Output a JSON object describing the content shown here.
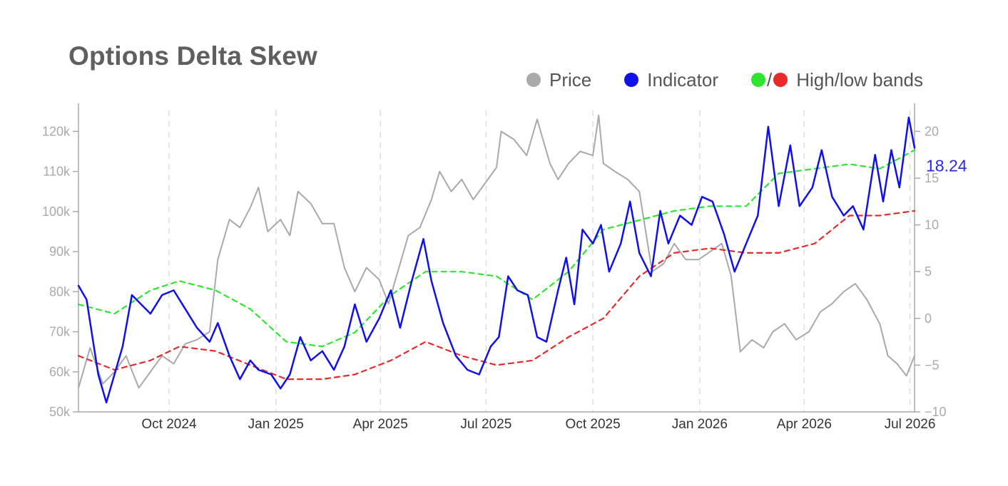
{
  "title": "Options Delta Skew",
  "legend": {
    "price": "Price",
    "indicator": "Indicator",
    "bands_sep": "/",
    "bands": "High/low bands"
  },
  "colors": {
    "price": "#a9a9a9",
    "indicator": "#1010e8",
    "high_band": "#2ee62e",
    "low_band": "#e82a2a",
    "last_value": "#2a2ae0",
    "axis": "#aaaaaa",
    "grid": "#dddddd"
  },
  "chart_data": {
    "type": "line",
    "title": "Options Delta Skew",
    "grid": "vertical dashed",
    "legend_position": "top-right",
    "x_axis": {
      "ticks": [
        "Oct 2024",
        "Jan 2025",
        "Apr 2025",
        "Jul 2025",
        "Oct 2025",
        "Jan 2026",
        "Apr 2026",
        "Jul 2026"
      ],
      "range": [
        "2024-07-15",
        "2026-07-05"
      ]
    },
    "y_left": {
      "range": [
        50000,
        127000
      ],
      "ticks": [
        50000,
        60000,
        70000,
        80000,
        90000,
        100000,
        110000,
        120000
      ],
      "tick_labels": [
        "50k",
        "60k",
        "70k",
        "80k",
        "90k",
        "100k",
        "110k",
        "120k"
      ]
    },
    "y_right": {
      "range": [
        -10,
        23
      ],
      "ticks": [
        -10,
        -5,
        0,
        5,
        10,
        15,
        20
      ],
      "tick_labels": [
        "−10",
        "−5",
        "0",
        "5",
        "10",
        "15",
        "20"
      ]
    },
    "last_value_label": "18.24",
    "series": [
      {
        "name": "Price",
        "axis": "left",
        "points": [
          [
            "2024-07-15",
            56000
          ],
          [
            "2024-07-25",
            66000
          ],
          [
            "2024-08-05",
            57000
          ],
          [
            "2024-08-15",
            60000
          ],
          [
            "2024-08-25",
            64000
          ],
          [
            "2024-09-05",
            56000
          ],
          [
            "2024-09-15",
            60000
          ],
          [
            "2024-09-25",
            64000
          ],
          [
            "2024-10-05",
            62000
          ],
          [
            "2024-10-15",
            67000
          ],
          [
            "2024-10-25",
            68000
          ],
          [
            "2024-11-05",
            70000
          ],
          [
            "2024-11-12",
            88000
          ],
          [
            "2024-11-22",
            98000
          ],
          [
            "2024-12-01",
            96000
          ],
          [
            "2024-12-10",
            101000
          ],
          [
            "2024-12-17",
            106000
          ],
          [
            "2024-12-25",
            95000
          ],
          [
            "2025-01-05",
            98000
          ],
          [
            "2025-01-13",
            94000
          ],
          [
            "2025-01-20",
            105000
          ],
          [
            "2025-01-31",
            102000
          ],
          [
            "2025-02-10",
            97000
          ],
          [
            "2025-02-20",
            97000
          ],
          [
            "2025-03-01",
            86000
          ],
          [
            "2025-03-10",
            80000
          ],
          [
            "2025-03-20",
            86000
          ],
          [
            "2025-03-31",
            83000
          ],
          [
            "2025-04-08",
            77000
          ],
          [
            "2025-04-15",
            84000
          ],
          [
            "2025-04-25",
            94000
          ],
          [
            "2025-05-05",
            96000
          ],
          [
            "2025-05-15",
            103000
          ],
          [
            "2025-05-22",
            110000
          ],
          [
            "2025-06-01",
            105000
          ],
          [
            "2025-06-10",
            108000
          ],
          [
            "2025-06-20",
            103000
          ],
          [
            "2025-06-30",
            107000
          ],
          [
            "2025-07-10",
            111000
          ],
          [
            "2025-07-14",
            120000
          ],
          [
            "2025-07-25",
            118000
          ],
          [
            "2025-08-05",
            114000
          ],
          [
            "2025-08-14",
            123000
          ],
          [
            "2025-08-25",
            112000
          ],
          [
            "2025-09-01",
            108000
          ],
          [
            "2025-09-10",
            112000
          ],
          [
            "2025-09-20",
            115000
          ],
          [
            "2025-10-01",
            114000
          ],
          [
            "2025-10-06",
            124000
          ],
          [
            "2025-10-10",
            112000
          ],
          [
            "2025-10-20",
            110000
          ],
          [
            "2025-10-31",
            108000
          ],
          [
            "2025-11-10",
            105000
          ],
          [
            "2025-11-21",
            85000
          ],
          [
            "2025-12-01",
            87000
          ],
          [
            "2025-12-10",
            92000
          ],
          [
            "2025-12-20",
            88000
          ],
          [
            "2025-12-31",
            88000
          ],
          [
            "2026-01-10",
            90000
          ],
          [
            "2026-01-20",
            92000
          ],
          [
            "2026-01-28",
            84000
          ],
          [
            "2026-02-05",
            65000
          ],
          [
            "2026-02-15",
            68000
          ],
          [
            "2026-02-25",
            66000
          ],
          [
            "2026-03-05",
            70000
          ],
          [
            "2026-03-15",
            72000
          ],
          [
            "2026-03-25",
            68000
          ],
          [
            "2026-04-05",
            70000
          ],
          [
            "2026-04-15",
            75000
          ],
          [
            "2026-04-25",
            77000
          ],
          [
            "2026-05-05",
            80000
          ],
          [
            "2026-05-15",
            82000
          ],
          [
            "2026-05-25",
            78000
          ],
          [
            "2026-06-05",
            72000
          ],
          [
            "2026-06-12",
            64000
          ],
          [
            "2026-06-20",
            62000
          ],
          [
            "2026-06-28",
            59000
          ],
          [
            "2026-07-05",
            64000
          ]
        ]
      },
      {
        "name": "Indicator",
        "axis": "right",
        "points": [
          [
            "2024-07-15",
            3.5
          ],
          [
            "2024-07-22",
            2.0
          ],
          [
            "2024-08-01",
            -6.0
          ],
          [
            "2024-08-08",
            -9.0
          ],
          [
            "2024-08-15",
            -6.0
          ],
          [
            "2024-08-22",
            -3.0
          ],
          [
            "2024-08-30",
            2.5
          ],
          [
            "2024-09-07",
            1.5
          ],
          [
            "2024-09-15",
            0.5
          ],
          [
            "2024-09-25",
            2.5
          ],
          [
            "2024-10-05",
            3.0
          ],
          [
            "2024-10-15",
            1.0
          ],
          [
            "2024-10-25",
            -1.0
          ],
          [
            "2024-11-05",
            -2.5
          ],
          [
            "2024-11-12",
            -0.5
          ],
          [
            "2024-11-22",
            -4.0
          ],
          [
            "2024-12-01",
            -6.5
          ],
          [
            "2024-12-10",
            -4.5
          ],
          [
            "2024-12-17",
            -5.5
          ],
          [
            "2024-12-28",
            -6.0
          ],
          [
            "2025-01-05",
            -7.5
          ],
          [
            "2025-01-13",
            -6.0
          ],
          [
            "2025-01-22",
            -2.0
          ],
          [
            "2025-01-31",
            -4.5
          ],
          [
            "2025-02-10",
            -3.5
          ],
          [
            "2025-02-20",
            -5.5
          ],
          [
            "2025-03-01",
            -3.0
          ],
          [
            "2025-03-10",
            1.5
          ],
          [
            "2025-03-20",
            -2.5
          ],
          [
            "2025-03-31",
            0.0
          ],
          [
            "2025-04-10",
            3.0
          ],
          [
            "2025-04-18",
            -1.0
          ],
          [
            "2025-04-28",
            4.0
          ],
          [
            "2025-05-08",
            8.5
          ],
          [
            "2025-05-15",
            4.0
          ],
          [
            "2025-05-25",
            -0.5
          ],
          [
            "2025-06-05",
            -4.0
          ],
          [
            "2025-06-15",
            -5.5
          ],
          [
            "2025-06-25",
            -6.0
          ],
          [
            "2025-07-05",
            -3.0
          ],
          [
            "2025-07-12",
            -2.0
          ],
          [
            "2025-07-20",
            4.5
          ],
          [
            "2025-07-28",
            3.0
          ],
          [
            "2025-08-06",
            2.5
          ],
          [
            "2025-08-14",
            -2.0
          ],
          [
            "2025-08-22",
            -2.5
          ],
          [
            "2025-09-01",
            3.0
          ],
          [
            "2025-09-08",
            6.5
          ],
          [
            "2025-09-15",
            1.5
          ],
          [
            "2025-09-22",
            9.5
          ],
          [
            "2025-10-01",
            8.0
          ],
          [
            "2025-10-08",
            10.0
          ],
          [
            "2025-10-15",
            5.0
          ],
          [
            "2025-10-25",
            8.0
          ],
          [
            "2025-11-02",
            12.5
          ],
          [
            "2025-11-10",
            7.0
          ],
          [
            "2025-11-20",
            4.5
          ],
          [
            "2025-11-28",
            11.5
          ],
          [
            "2025-12-05",
            8.0
          ],
          [
            "2025-12-15",
            11.0
          ],
          [
            "2025-12-25",
            10.0
          ],
          [
            "2026-01-03",
            13.0
          ],
          [
            "2026-01-12",
            12.5
          ],
          [
            "2026-01-22",
            9.0
          ],
          [
            "2026-01-31",
            5.0
          ],
          [
            "2026-02-10",
            8.0
          ],
          [
            "2026-02-20",
            11.0
          ],
          [
            "2026-03-01",
            20.5
          ],
          [
            "2026-03-10",
            12.0
          ],
          [
            "2026-03-20",
            18.5
          ],
          [
            "2026-03-28",
            12.0
          ],
          [
            "2026-04-08",
            14.0
          ],
          [
            "2026-04-16",
            18.0
          ],
          [
            "2026-04-25",
            13.0
          ],
          [
            "2026-05-05",
            11.0
          ],
          [
            "2026-05-13",
            12.0
          ],
          [
            "2026-05-22",
            9.5
          ],
          [
            "2026-06-01",
            17.5
          ],
          [
            "2026-06-08",
            12.5
          ],
          [
            "2026-06-15",
            18.0
          ],
          [
            "2026-06-22",
            14.0
          ],
          [
            "2026-06-30",
            21.5
          ],
          [
            "2026-07-05",
            18.24
          ]
        ]
      },
      {
        "name": "High band",
        "axis": "right",
        "style": "dashed",
        "points": [
          [
            "2024-07-15",
            1.5
          ],
          [
            "2024-08-15",
            0.5
          ],
          [
            "2024-09-15",
            3.0
          ],
          [
            "2024-10-10",
            4.0
          ],
          [
            "2024-11-10",
            3.0
          ],
          [
            "2024-12-10",
            1.0
          ],
          [
            "2025-01-10",
            -2.5
          ],
          [
            "2025-02-10",
            -3.0
          ],
          [
            "2025-03-10",
            -1.5
          ],
          [
            "2025-04-10",
            2.5
          ],
          [
            "2025-05-10",
            5.0
          ],
          [
            "2025-06-10",
            5.0
          ],
          [
            "2025-07-10",
            4.5
          ],
          [
            "2025-08-10",
            2.0
          ],
          [
            "2025-09-10",
            5.0
          ],
          [
            "2025-10-10",
            9.5
          ],
          [
            "2025-11-10",
            10.5
          ],
          [
            "2025-12-10",
            11.5
          ],
          [
            "2026-01-10",
            12.0
          ],
          [
            "2026-02-10",
            12.0
          ],
          [
            "2026-03-10",
            15.5
          ],
          [
            "2026-04-10",
            16.0
          ],
          [
            "2026-05-10",
            16.5
          ],
          [
            "2026-06-05",
            16.0
          ],
          [
            "2026-07-05",
            18.0
          ]
        ]
      },
      {
        "name": "Low band",
        "axis": "right",
        "style": "dashed",
        "points": [
          [
            "2024-07-15",
            -4.0
          ],
          [
            "2024-08-15",
            -5.5
          ],
          [
            "2024-09-15",
            -4.5
          ],
          [
            "2024-10-10",
            -3.0
          ],
          [
            "2024-11-10",
            -3.5
          ],
          [
            "2024-12-10",
            -5.0
          ],
          [
            "2025-01-10",
            -6.5
          ],
          [
            "2025-02-10",
            -6.5
          ],
          [
            "2025-03-10",
            -6.0
          ],
          [
            "2025-04-10",
            -4.5
          ],
          [
            "2025-05-10",
            -2.5
          ],
          [
            "2025-06-10",
            -4.0
          ],
          [
            "2025-07-10",
            -5.0
          ],
          [
            "2025-08-10",
            -4.5
          ],
          [
            "2025-09-10",
            -2.0
          ],
          [
            "2025-10-10",
            0.0
          ],
          [
            "2025-11-10",
            4.5
          ],
          [
            "2025-12-10",
            7.0
          ],
          [
            "2026-01-10",
            7.5
          ],
          [
            "2026-02-10",
            7.0
          ],
          [
            "2026-03-10",
            7.0
          ],
          [
            "2026-04-10",
            8.0
          ],
          [
            "2026-05-10",
            11.0
          ],
          [
            "2026-06-05",
            11.0
          ],
          [
            "2026-07-05",
            11.5
          ]
        ]
      }
    ]
  }
}
